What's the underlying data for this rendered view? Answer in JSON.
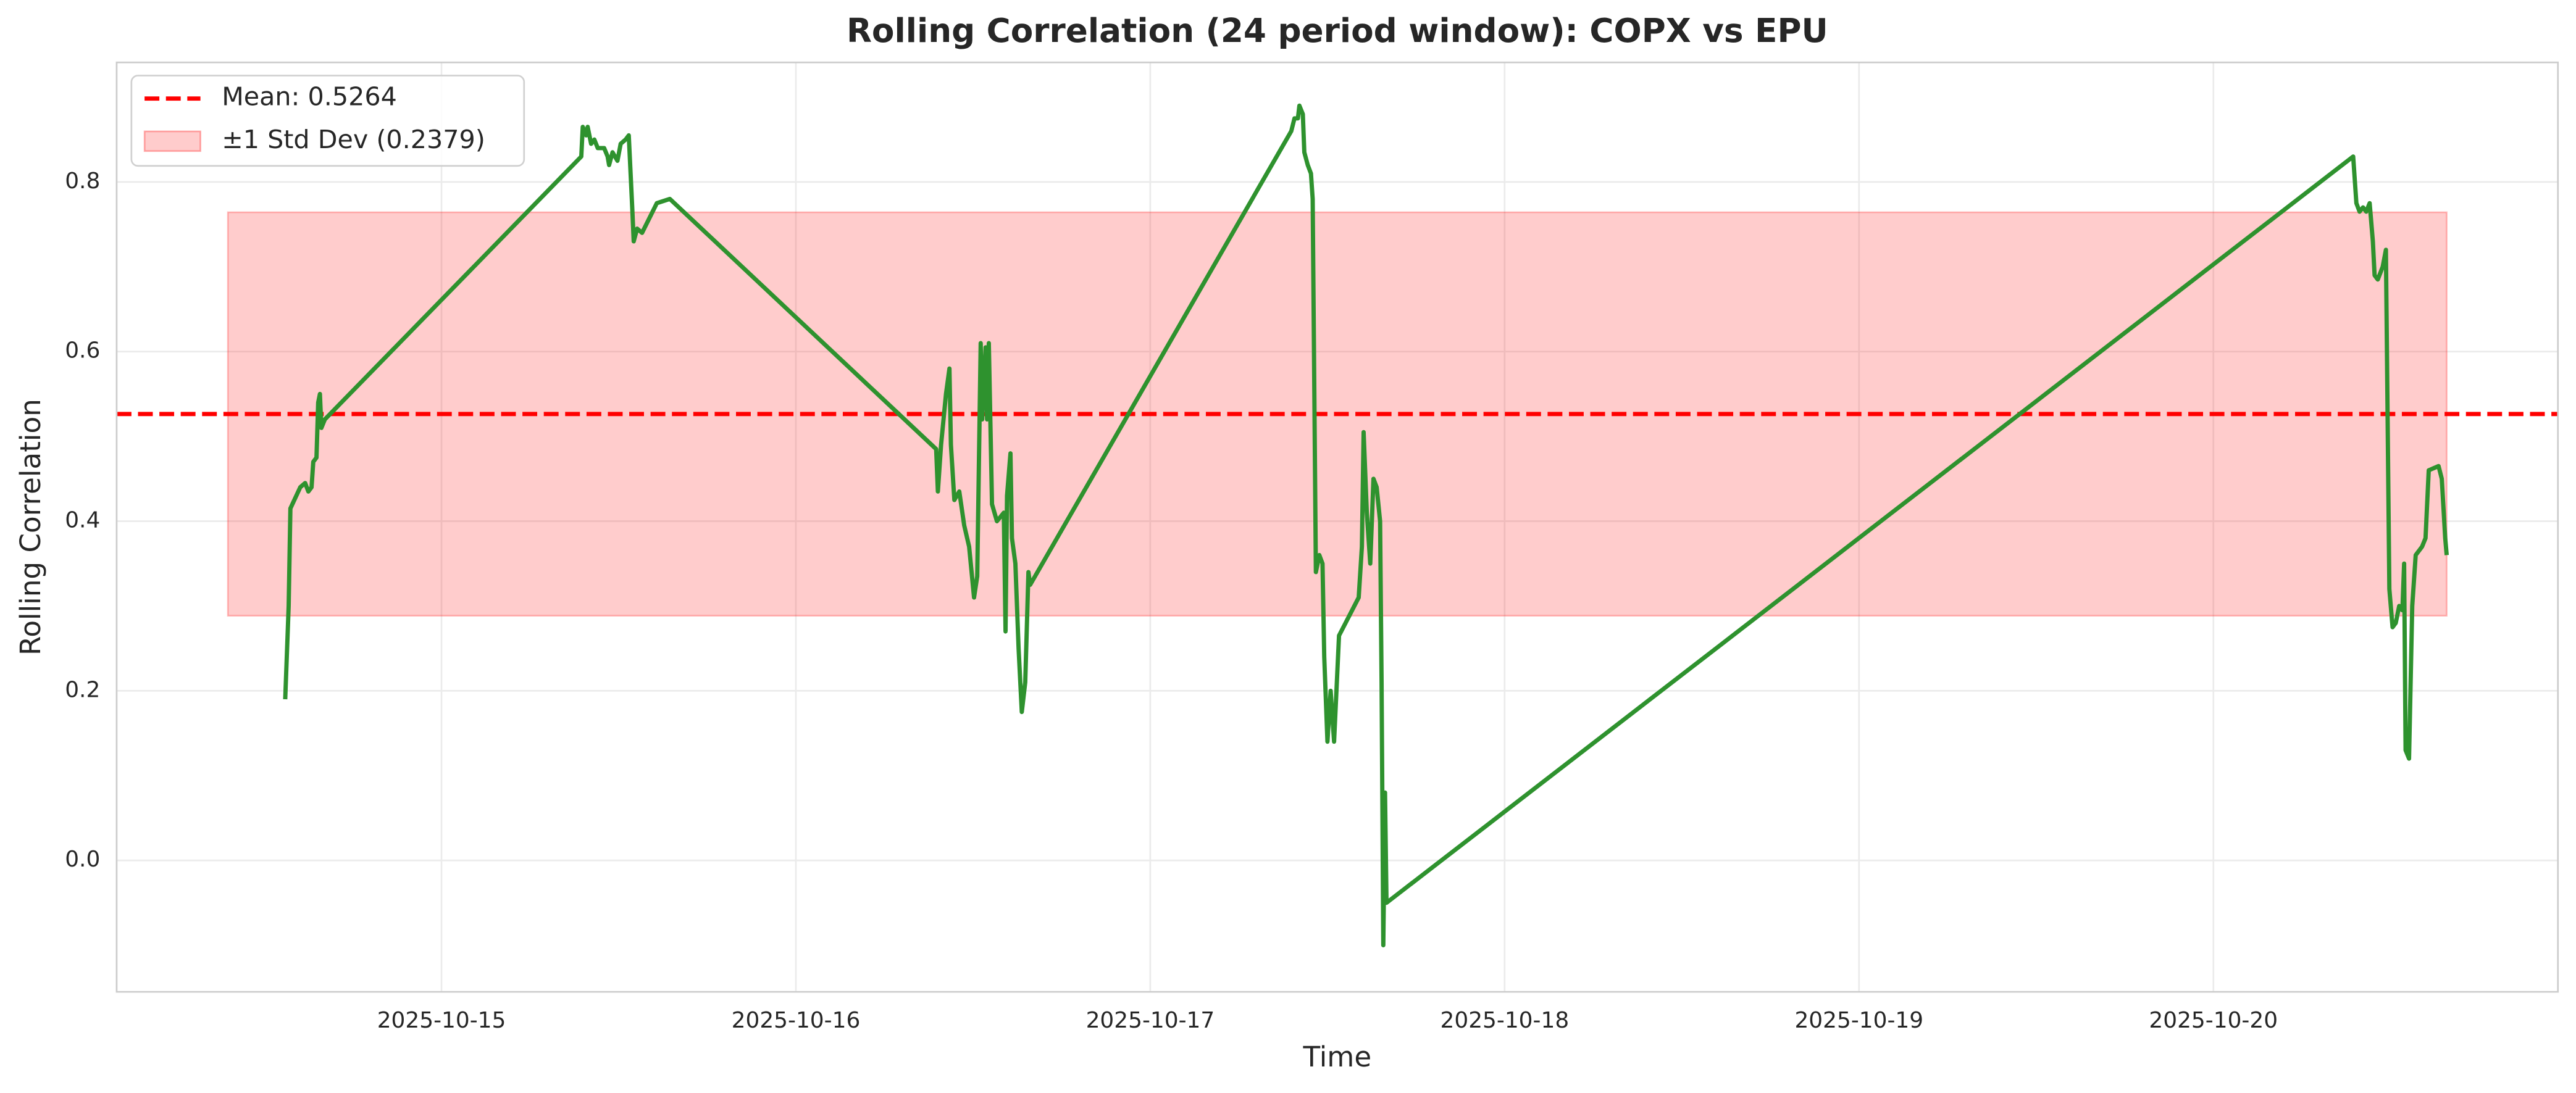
{
  "chart_data": {
    "type": "line",
    "title": "Rolling Correlation (24 period window): COPX vs EPU",
    "xlabel": "Time",
    "ylabel": "Rolling Correlation",
    "xlim": [
      "2025-10-14 02:00",
      "2025-10-20 23:20"
    ],
    "xticks": [
      "2025-10-15",
      "2025-10-16",
      "2025-10-17",
      "2025-10-18",
      "2025-10-19",
      "2025-10-20"
    ],
    "ylim": [
      -0.155,
      0.941
    ],
    "yticks": [
      {
        "value": 0,
        "label": "0.0"
      },
      0.2,
      0.4,
      0.6,
      0.8
    ],
    "grid": true,
    "legend": "upper left",
    "mean": {
      "label": "Mean: 0.5264",
      "value": 0.5264,
      "color": "#ff0000"
    },
    "band": {
      "label": "±1 Std Dev (0.2379)",
      "lower": 0.2885,
      "upper": 0.7643,
      "x": [
        "2025-10-14 09:32",
        "2025-10-20 15:48"
      ],
      "color": "#ff0000"
    },
    "x": [
      "2025-10-14 13:25",
      "2025-10-14 13:39",
      "2025-10-14 13:46",
      "2025-10-14 14:26",
      "2025-10-14 14:46",
      "2025-10-14 14:59",
      "2025-10-14 15:12",
      "2025-10-14 15:19",
      "2025-10-14 15:32",
      "2025-10-14 15:39",
      "2025-10-14 15:46",
      "2025-10-14 15:52",
      "2025-10-14 16:06",
      "2025-10-15 09:28",
      "2025-10-15 09:34",
      "2025-10-15 09:48",
      "2025-10-15 09:54",
      "2025-10-15 10:08",
      "2025-10-15 10:21",
      "2025-10-15 10:35",
      "2025-10-15 11:01",
      "2025-10-15 11:15",
      "2025-10-15 11:21",
      "2025-10-15 11:35",
      "2025-10-15 11:55",
      "2025-10-15 12:08",
      "2025-10-15 12:28",
      "2025-10-15 12:41",
      "2025-10-15 12:55",
      "2025-10-15 13:01",
      "2025-10-15 13:15",
      "2025-10-15 13:35",
      "2025-10-15 14:35",
      "2025-10-15 15:28",
      "2025-10-16 09:30",
      "2025-10-16 09:37",
      "2025-10-16 09:50",
      "2025-10-16 10:10",
      "2025-10-16 10:24",
      "2025-10-16 10:30",
      "2025-10-16 10:44",
      "2025-10-16 11:04",
      "2025-10-16 11:24",
      "2025-10-16 11:44",
      "2025-10-16 12:04",
      "2025-10-16 12:17",
      "2025-10-16 12:31",
      "2025-10-16 12:37",
      "2025-10-16 12:51",
      "2025-10-16 12:57",
      "2025-10-16 13:04",
      "2025-10-16 13:17",
      "2025-10-16 13:37",
      "2025-10-16 14:05",
      "2025-10-16 14:12",
      "2025-10-16 14:18",
      "2025-10-16 14:32",
      "2025-10-16 14:38",
      "2025-10-16 14:52",
      "2025-10-16 15:05",
      "2025-10-16 15:18",
      "2025-10-16 15:32",
      "2025-10-16 15:45",
      "2025-10-16 15:52",
      "2025-10-17 09:33",
      "2025-10-17 09:46",
      "2025-10-17 10:00",
      "2025-10-17 10:06",
      "2025-10-17 10:20",
      "2025-10-17 10:26",
      "2025-10-17 10:40",
      "2025-10-17 10:53",
      "2025-10-17 11:00",
      "2025-10-17 11:13",
      "2025-10-17 11:27",
      "2025-10-17 11:40",
      "2025-10-17 11:47",
      "2025-10-17 12:00",
      "2025-10-17 12:13",
      "2025-10-17 12:27",
      "2025-10-17 12:47",
      "2025-10-17 14:07",
      "2025-10-17 14:20",
      "2025-10-17 14:27",
      "2025-10-17 14:40",
      "2025-10-17 14:54",
      "2025-10-17 15:07",
      "2025-10-17 15:20",
      "2025-10-17 15:34",
      "2025-10-17 15:40",
      "2025-10-17 15:47",
      "2025-10-17 15:54",
      "2025-10-17 16:00",
      "2025-10-20 09:28",
      "2025-10-20 09:41",
      "2025-10-20 09:54",
      "2025-10-20 10:08",
      "2025-10-20 10:21",
      "2025-10-20 10:35",
      "2025-10-20 10:48",
      "2025-10-20 10:55",
      "2025-10-20 11:08",
      "2025-10-20 11:28",
      "2025-10-20 11:41",
      "2025-10-20 11:55",
      "2025-10-20 12:08",
      "2025-10-20 12:21",
      "2025-10-20 12:35",
      "2025-10-20 12:48",
      "2025-10-20 12:55",
      "2025-10-20 13:01",
      "2025-10-20 13:15",
      "2025-10-20 13:28",
      "2025-10-20 13:42",
      "2025-10-20 14:08",
      "2025-10-20 14:22",
      "2025-10-20 14:35",
      "2025-10-20 15:15",
      "2025-10-20 15:28",
      "2025-10-20 15:42",
      "2025-10-20 15:48"
    ],
    "series": [
      {
        "color": "#2e922e",
        "values": [
          0.19,
          0.3,
          0.415,
          0.44,
          0.445,
          0.435,
          0.44,
          0.47,
          0.475,
          0.54,
          0.55,
          0.51,
          0.52,
          0.83,
          0.865,
          0.855,
          0.865,
          0.845,
          0.85,
          0.84,
          0.84,
          0.83,
          0.82,
          0.835,
          0.825,
          0.845,
          0.85,
          0.855,
          0.77,
          0.73,
          0.745,
          0.74,
          0.775,
          0.78,
          0.485,
          0.435,
          0.49,
          0.55,
          0.58,
          0.49,
          0.425,
          0.435,
          0.395,
          0.37,
          0.31,
          0.335,
          0.61,
          0.52,
          0.605,
          0.52,
          0.61,
          0.42,
          0.4,
          0.41,
          0.27,
          0.43,
          0.48,
          0.38,
          0.35,
          0.25,
          0.175,
          0.21,
          0.34,
          0.325,
          0.86,
          0.875,
          0.875,
          0.89,
          0.88,
          0.835,
          0.82,
          0.81,
          0.78,
          0.34,
          0.36,
          0.35,
          0.24,
          0.14,
          0.2,
          0.14,
          0.265,
          0.31,
          0.37,
          0.505,
          0.41,
          0.35,
          0.45,
          0.44,
          0.4,
          0.21,
          -0.1,
          0.08,
          -0.05,
          0.83,
          0.775,
          0.765,
          0.77,
          0.765,
          0.775,
          0.73,
          0.69,
          0.685,
          0.7,
          0.72,
          0.32,
          0.275,
          0.28,
          0.3,
          0.295,
          0.35,
          0.13,
          0.12,
          0.3,
          0.36,
          0.37,
          0.38,
          0.46,
          0.465,
          0.45,
          0.38,
          0.36
        ]
      }
    ]
  }
}
